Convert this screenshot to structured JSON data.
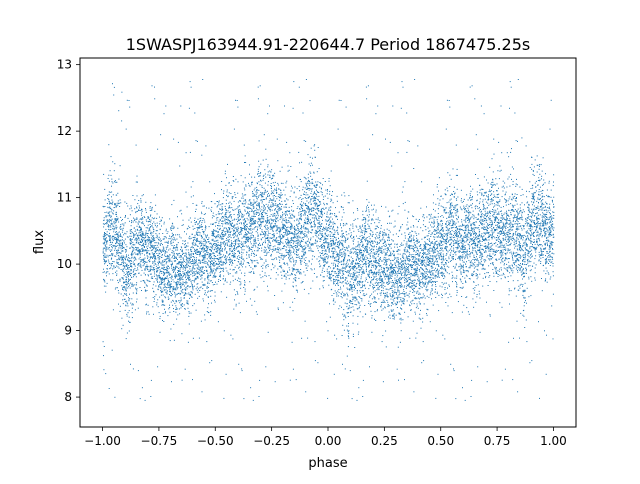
{
  "chart_data": {
    "type": "scatter",
    "title": "1SWASPJ163944.91-220644.7 Period 1867475.25s",
    "xlabel": "phase",
    "ylabel": "flux",
    "xlim": [
      -1.1,
      1.1
    ],
    "ylim": [
      7.55,
      13.1
    ],
    "xticks": [
      "−1.00",
      "−0.75",
      "−0.50",
      "−0.25",
      "0.00",
      "0.25",
      "0.50",
      "0.75",
      "1.00"
    ],
    "xtick_values": [
      -1.0,
      -0.75,
      -0.5,
      -0.25,
      0.0,
      0.25,
      0.5,
      0.75,
      1.0
    ],
    "yticks": [
      "8",
      "9",
      "10",
      "11",
      "12",
      "13"
    ],
    "ytick_values": [
      8,
      9,
      10,
      11,
      12,
      13
    ],
    "grid": false,
    "marker_color": "#1f77b4",
    "series": [
      {
        "phase": [
          -0.99,
          -0.97,
          -0.95,
          -0.93,
          -0.91,
          -0.89,
          -0.87,
          -0.85,
          -0.83,
          -0.81,
          -0.79,
          -0.77,
          -0.75,
          -0.73,
          -0.71,
          -0.69,
          -0.67,
          -0.65,
          -0.63,
          -0.61,
          -0.59,
          -0.57,
          -0.55,
          -0.53,
          -0.51,
          -0.49,
          -0.47,
          -0.45,
          -0.43,
          -0.41,
          -0.39,
          -0.37,
          -0.35,
          -0.33,
          -0.31,
          -0.29,
          -0.27,
          -0.25,
          -0.23,
          -0.21,
          -0.19,
          -0.17,
          -0.15,
          -0.13,
          -0.11,
          -0.09,
          -0.07,
          -0.05,
          -0.03,
          -0.01,
          0.01,
          0.03,
          0.05,
          0.07,
          0.09,
          0.11,
          0.13,
          0.15,
          0.17,
          0.19,
          0.21,
          0.23,
          0.25,
          0.27,
          0.29,
          0.31,
          0.33,
          0.35,
          0.37,
          0.39,
          0.41,
          0.43,
          0.45,
          0.47,
          0.49,
          0.51,
          0.53,
          0.55,
          0.57,
          0.59,
          0.61,
          0.63,
          0.65,
          0.67,
          0.69,
          0.71,
          0.73,
          0.75,
          0.77,
          0.79,
          0.81,
          0.83,
          0.85,
          0.87,
          0.89,
          0.91,
          0.93,
          0.95,
          0.97,
          0.99
        ],
        "flux_center": [
          10.3,
          10.6,
          10.5,
          10.3,
          10.0,
          9.8,
          10.1,
          10.3,
          10.4,
          10.2,
          10.3,
          10.1,
          10.0,
          9.9,
          9.9,
          10.0,
          9.8,
          9.9,
          9.9,
          10.0,
          10.1,
          10.2,
          10.1,
          10.0,
          10.2,
          10.3,
          10.4,
          10.5,
          10.5,
          10.3,
          10.4,
          10.5,
          10.6,
          10.6,
          10.7,
          10.7,
          10.6,
          10.7,
          10.6,
          10.5,
          10.4,
          10.4,
          10.3,
          10.4,
          10.5,
          10.7,
          10.8,
          10.7,
          10.5,
          10.4,
          10.3,
          10.2,
          10.1,
          10.0,
          9.8,
          9.9,
          10.0,
          10.1,
          10.2,
          10.1,
          10.0,
          10.0,
          9.9,
          9.9,
          9.8,
          9.8,
          9.9,
          10.0,
          10.0,
          9.9,
          9.9,
          10.0,
          10.1,
          10.2,
          10.3,
          10.3,
          10.4,
          10.5,
          10.4,
          10.3,
          10.4,
          10.4,
          10.3,
          10.4,
          10.5,
          10.5,
          10.6,
          10.5,
          10.4,
          10.5,
          10.5,
          10.4,
          10.3,
          10.1,
          10.4,
          10.7,
          10.7,
          10.6,
          10.5,
          10.5
        ],
        "flux_spread": [
          0.45,
          0.55,
          0.5,
          0.5,
          0.5,
          0.55,
          0.5,
          0.5,
          0.5,
          0.45,
          0.45,
          0.45,
          0.45,
          0.45,
          0.45,
          0.5,
          0.45,
          0.45,
          0.45,
          0.45,
          0.45,
          0.45,
          0.45,
          0.45,
          0.45,
          0.45,
          0.5,
          0.5,
          0.5,
          0.5,
          0.5,
          0.55,
          0.55,
          0.55,
          0.55,
          0.55,
          0.55,
          0.55,
          0.55,
          0.5,
          0.5,
          0.5,
          0.5,
          0.5,
          0.5,
          0.55,
          0.55,
          0.55,
          0.5,
          0.5,
          0.55,
          0.5,
          0.5,
          0.55,
          0.6,
          0.6,
          0.5,
          0.5,
          0.5,
          0.5,
          0.5,
          0.5,
          0.5,
          0.5,
          0.5,
          0.5,
          0.45,
          0.45,
          0.45,
          0.45,
          0.45,
          0.45,
          0.45,
          0.5,
          0.5,
          0.5,
          0.5,
          0.5,
          0.5,
          0.5,
          0.5,
          0.5,
          0.5,
          0.5,
          0.5,
          0.55,
          0.55,
          0.55,
          0.5,
          0.55,
          0.55,
          0.5,
          0.5,
          0.55,
          0.55,
          0.55,
          0.55,
          0.5,
          0.5,
          0.45
        ]
      }
    ]
  }
}
